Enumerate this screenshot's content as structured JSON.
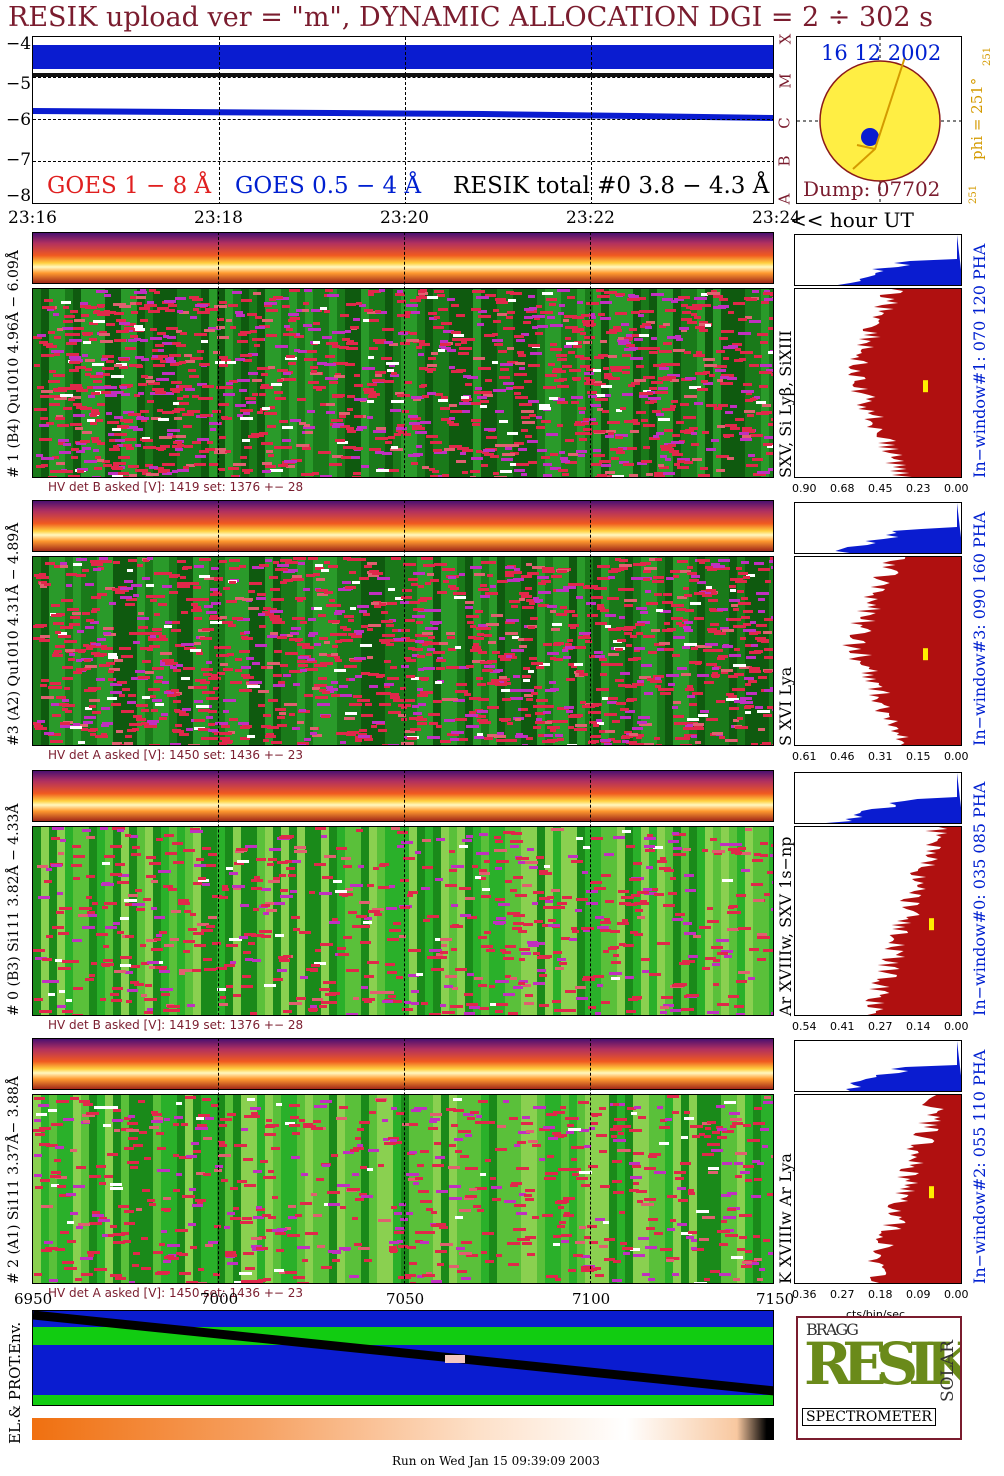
{
  "title": "RESIK upload ver = \"m\", DYNAMIC ALLOCATION  DGI =   2 ÷ 302 s",
  "colors": {
    "title": "#7a1c2e",
    "goes1": "#e02020",
    "goes2": "#0020d0",
    "sun": "#ffee44",
    "rim": "#8b1a1a",
    "hist_red": "#b01010",
    "hist_blue": "#0a1cd0"
  },
  "goes_panel": {
    "y_ticks": [
      "−4",
      "−5",
      "−6",
      "−7",
      "−8"
    ],
    "class_labels": [
      "X",
      "M",
      "C",
      "B",
      "A"
    ],
    "legend": {
      "goes1": "GOES 1 − 8 Å",
      "goes2": "GOES 0.5 − 4 Å",
      "resik": "RESIK total #0  3.8 − 4.3 Å"
    }
  },
  "sun_panel": {
    "date": "16 12 2002",
    "dump": "Dump: 07702",
    "phi": "phi = 251°",
    "phi_small": "251",
    "phi_bottom": "251"
  },
  "time_axis": {
    "ticks": [
      "23:16",
      "23:18",
      "23:20",
      "23:22",
      "23:24"
    ],
    "unit": "<< hour UT"
  },
  "channels": [
    {
      "side_label": "# 1 (B4) Qu1010 4.96Å − 6.09Å",
      "line_label": "SXV, Si Lyβ, SiXIII",
      "hv": "HV det B asked [V]:  1419 set:  1376 +−   28",
      "hist_ticks": [
        "0.90",
        "0.68",
        "0.45",
        "0.23",
        "0.00"
      ],
      "window": "In−window#1:  070 120 PHA"
    },
    {
      "side_label": "#3 (A2) Qu1010  4.31Å − 4.89Å",
      "line_label": "S XVI Lya",
      "hv": "HV det A asked [V]:  1450 set:  1436 +−   23",
      "hist_ticks": [
        "0.61",
        "0.46",
        "0.31",
        "0.15",
        "0.00"
      ],
      "window": "In−window#3:  090 160 PHA"
    },
    {
      "side_label": "# 0 (B3) Si111  3.82Å − 4.33Å",
      "line_label": "Ar XVIIIw,  SXV 1s−np",
      "hv": "HV det B asked [V]:  1419 set:  1376 +−   28",
      "hist_ticks": [
        "0.54",
        "0.41",
        "0.27",
        "0.14",
        "0.00"
      ],
      "window": "In−window#0:  035 085 PHA"
    },
    {
      "side_label": "# 2 (A1) Si111  3.37Å− 3.88Å",
      "line_label": "K XVIIIw  Ar Lya",
      "hv": "HV det A asked [V]:  1450 set:  1436 +−   23",
      "hist_ticks": [
        "0.36",
        "0.27",
        "0.18",
        "0.09",
        "0.00"
      ],
      "window": "In−window#2:  055 110 PHA"
    }
  ],
  "hist_unit": "cts/bin/sec",
  "bottom_axis": {
    "ticks": [
      "6950",
      "7000",
      "7050",
      "7100",
      "7150"
    ]
  },
  "env_label": "EL.& PROT.Env.",
  "logo": {
    "letters": "RESIK",
    "bragg": "BRAGG",
    "solar": "SOLAR",
    "caption": "SPECTROMETER"
  },
  "footer": "Run on Wed Jan 15 09:39:09 2003",
  "chart_data": {
    "type": "heatmap",
    "x_axis_ticks": [
      "23:16",
      "23:18",
      "23:20",
      "23:22",
      "23:24"
    ],
    "goes_ylim": [
      -8,
      -4
    ],
    "series": [
      {
        "name": "GOES 1 − 8 Å",
        "values": [
          -4.85,
          -4.85,
          -4.86,
          -4.86,
          -4.87
        ]
      },
      {
        "name": "GOES 0.5 − 4 Å",
        "values": [
          -5.82,
          -5.85,
          -5.88,
          -5.9,
          -5.93
        ]
      }
    ]
  }
}
